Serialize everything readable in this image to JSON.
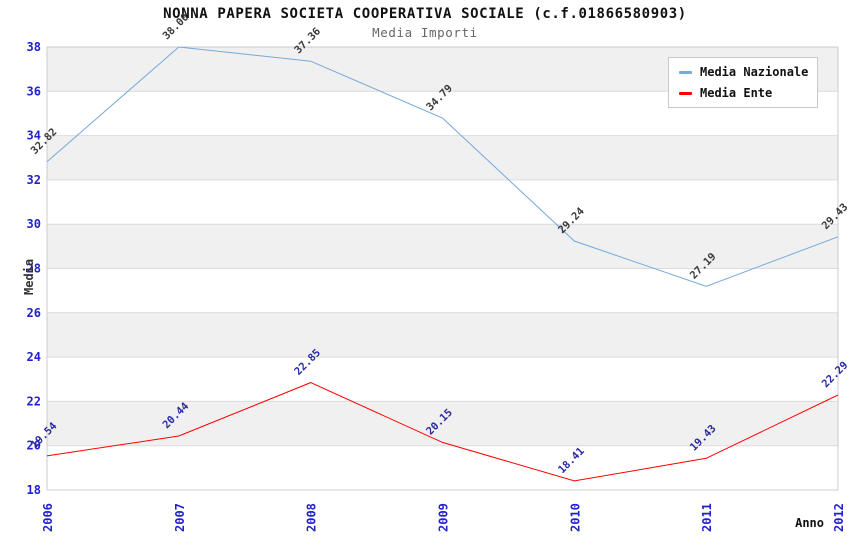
{
  "chart_data": {
    "type": "line",
    "title": "NONNA PAPERA SOCIETA COOPERATIVA SOCIALE (c.f.01866580903)",
    "subtitle": "Media Importi",
    "xlabel": "Anno",
    "ylabel": "Media",
    "categories": [
      "2006",
      "2007",
      "2008",
      "2009",
      "2010",
      "2011",
      "2012"
    ],
    "series": [
      {
        "name": "Media Nazionale",
        "color": "#74a9dc",
        "label_color": "#3a3a3a",
        "values": [
          32.82,
          38.0,
          37.36,
          34.79,
          29.24,
          27.19,
          29.43
        ]
      },
      {
        "name": "Media Ente",
        "color": "#ff0000",
        "label_color": "#2a2aa0",
        "values": [
          19.54,
          20.44,
          22.85,
          20.15,
          18.41,
          19.43,
          22.29
        ]
      }
    ],
    "ylim": [
      18,
      38
    ],
    "ytick_step": 2,
    "yticks": [
      18,
      20,
      22,
      24,
      26,
      28,
      30,
      32,
      34,
      36,
      38
    ],
    "grid": "horizontal-bands",
    "legend_position": "top-right",
    "colors": {
      "axis_tick_label": "#2222cc",
      "band": "#f0f0f0",
      "gridline": "#dcdcdc",
      "plot_border": "#cccccc",
      "title": "#111111",
      "subtitle": "#666666"
    }
  }
}
